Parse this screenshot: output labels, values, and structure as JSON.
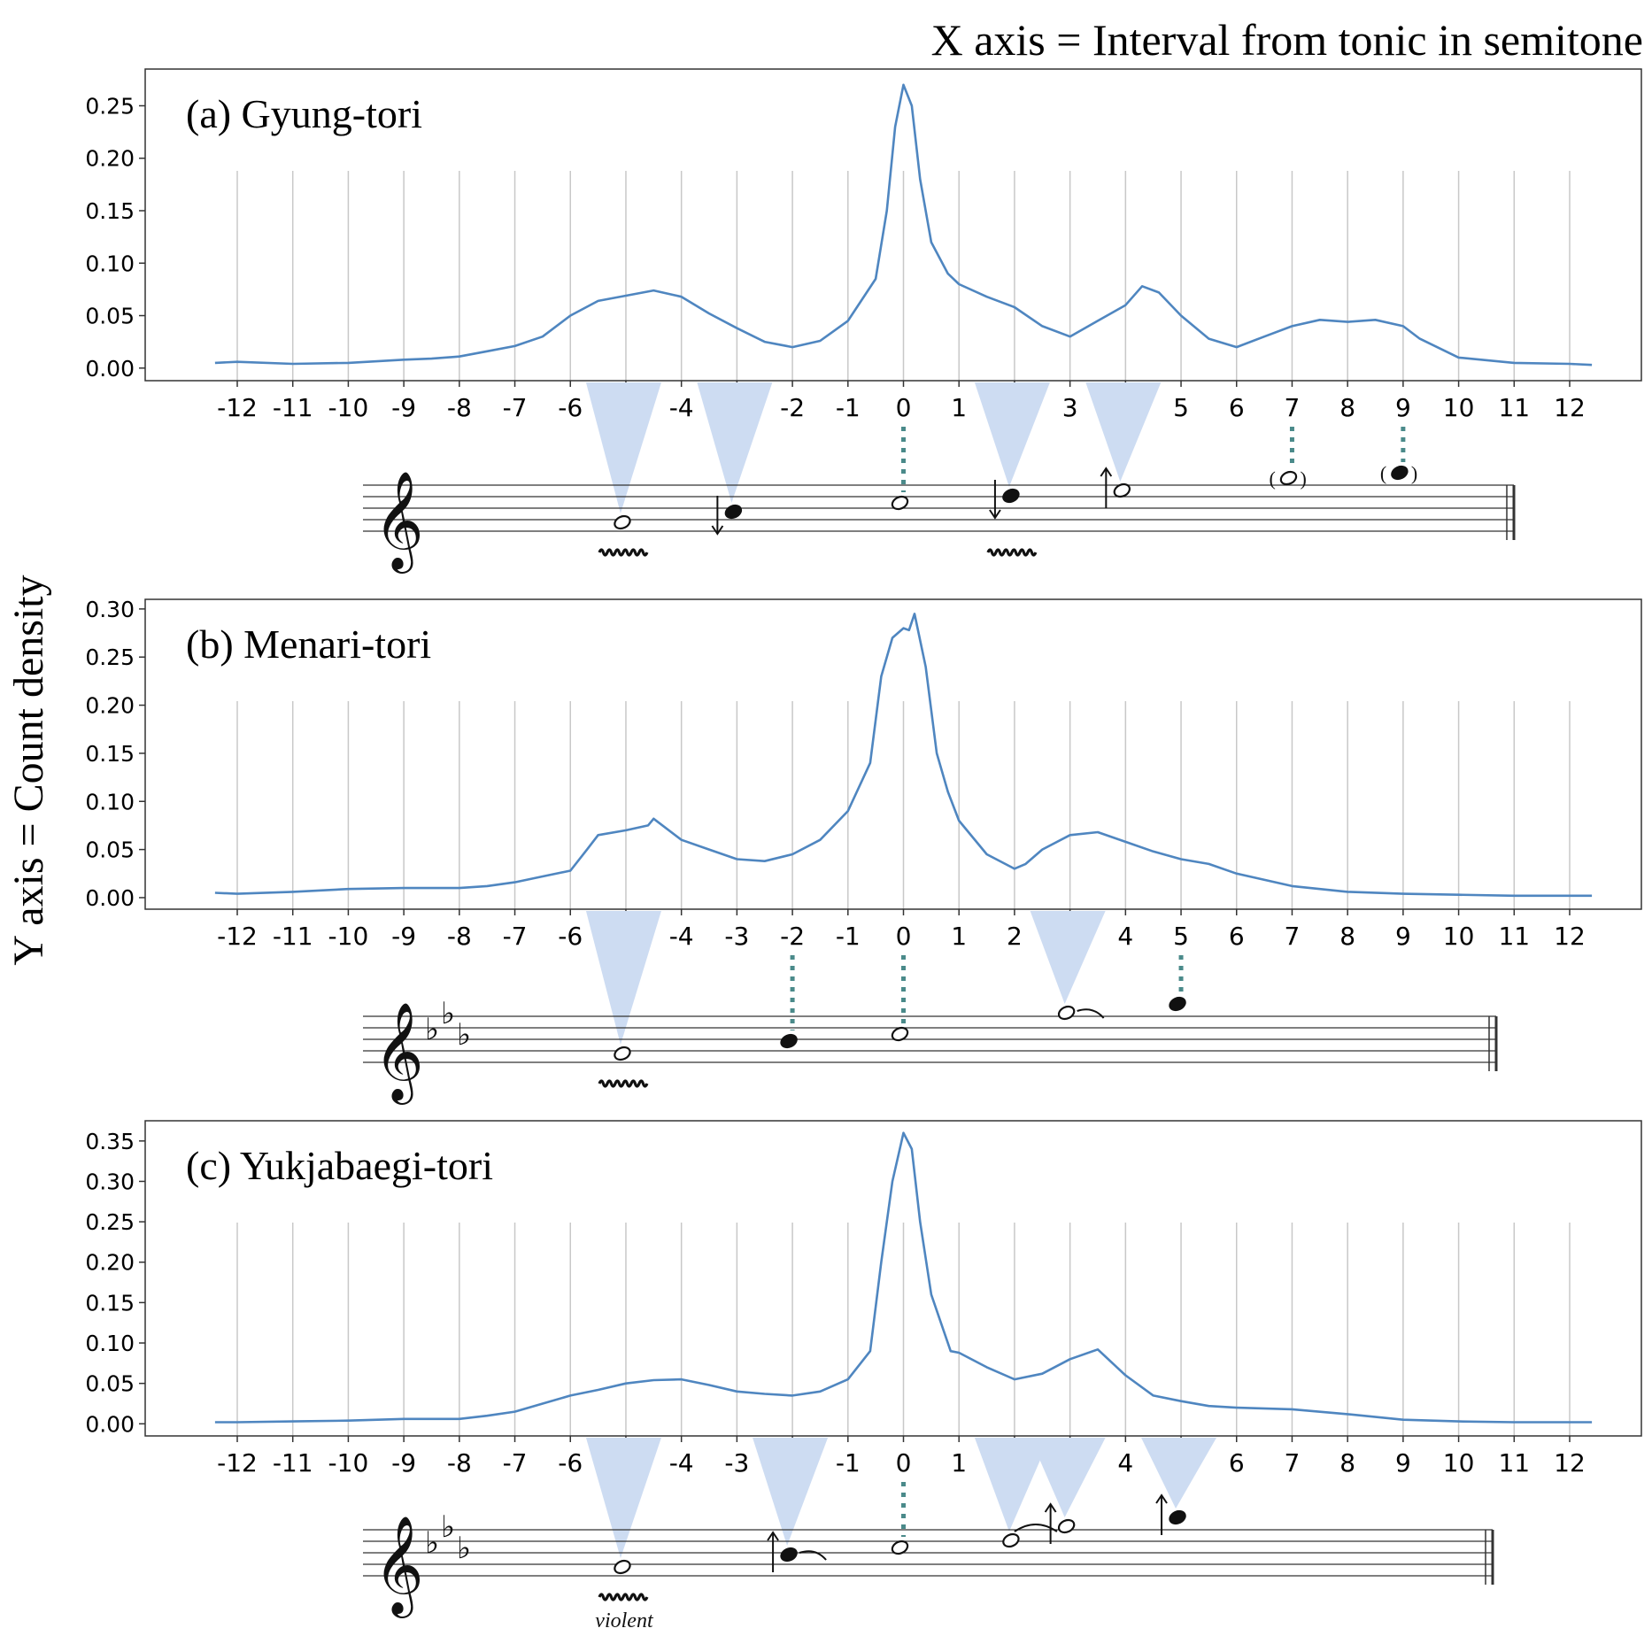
{
  "figure": {
    "x_axis_caption": "X axis = Interval from tonic in semitone",
    "y_axis_caption": "Y axis = Count density"
  },
  "colors": {
    "line": "#4f86c0",
    "grid": "#c8c8c8",
    "highlight": "#cddcf2",
    "dotted": "#4a8a8a",
    "note": "#111111"
  },
  "chart_data": [
    {
      "type": "line",
      "title": "(a) Gyung-tori",
      "xlim": [
        -12.5,
        12.5
      ],
      "ylim": [
        -0.012,
        0.285
      ],
      "xticks": [
        -12,
        -11,
        -10,
        -9,
        -8,
        -7,
        -6,
        -5,
        -4,
        -3,
        -2,
        -1,
        0,
        1,
        2,
        3,
        4,
        5,
        6,
        7,
        8,
        9,
        10,
        11,
        12
      ],
      "yticks": [
        "0.00",
        "0.05",
        "0.10",
        "0.15",
        "0.20",
        "0.25"
      ],
      "grid": "vertical",
      "series": [
        {
          "x": [
            -12.4,
            -12,
            -11,
            -10,
            -9,
            -8.5,
            -8,
            -7.5,
            -7,
            -6.5,
            -6,
            -5.5,
            -5,
            -4.5,
            -4,
            -3.5,
            -3,
            -2.5,
            -2,
            -1.5,
            -1,
            -0.5,
            -0.3,
            -0.15,
            0,
            0.15,
            0.3,
            0.5,
            0.8,
            1,
            1.5,
            2,
            2.5,
            3,
            3.5,
            4,
            4.3,
            4.6,
            5,
            5.5,
            6,
            6.5,
            7,
            7.5,
            8,
            8.5,
            9,
            9.3,
            10,
            11,
            12,
            12.4
          ],
          "y": [
            0.005,
            0.006,
            0.004,
            0.005,
            0.008,
            0.009,
            0.011,
            0.016,
            0.021,
            0.03,
            0.05,
            0.064,
            0.069,
            0.074,
            0.068,
            0.052,
            0.038,
            0.025,
            0.02,
            0.026,
            0.045,
            0.085,
            0.15,
            0.23,
            0.27,
            0.25,
            0.18,
            0.12,
            0.09,
            0.08,
            0.068,
            0.058,
            0.04,
            0.03,
            0.045,
            0.06,
            0.078,
            0.072,
            0.05,
            0.028,
            0.02,
            0.03,
            0.04,
            0.046,
            0.044,
            0.046,
            0.04,
            0.028,
            0.01,
            0.005,
            0.004,
            0.003
          ]
        }
      ],
      "staff": {
        "key_flats": 0,
        "notes": [
          {
            "interval": -5,
            "filled": false,
            "ornament": "vibrato"
          },
          {
            "interval": -3,
            "filled": true,
            "arrow": "down"
          },
          {
            "interval": 0,
            "filled": false
          },
          {
            "interval": 2,
            "filled": true,
            "arrow": "down",
            "ornament": "vibrato"
          },
          {
            "interval": 4,
            "filled": false,
            "arrow": "up"
          },
          {
            "interval": 7,
            "filled": false,
            "parenthesized": true
          },
          {
            "interval": 9,
            "filled": true,
            "parenthesized": true
          }
        ],
        "highlighted_intervals": [
          -5,
          -3,
          2,
          4
        ],
        "dotted_intervals": [
          0,
          7,
          9
        ]
      }
    },
    {
      "type": "line",
      "title": "(b) Menari-tori",
      "xlim": [
        -12.5,
        12.5
      ],
      "ylim": [
        -0.012,
        0.31
      ],
      "xticks": [
        -12,
        -11,
        -10,
        -9,
        -8,
        -7,
        -6,
        -5,
        -4,
        -3,
        -2,
        -1,
        0,
        1,
        2,
        3,
        4,
        5,
        6,
        7,
        8,
        9,
        10,
        11,
        12
      ],
      "yticks": [
        "0.00",
        "0.05",
        "0.10",
        "0.15",
        "0.20",
        "0.25",
        "0.30"
      ],
      "grid": "vertical",
      "series": [
        {
          "x": [
            -12.4,
            -12,
            -11,
            -10,
            -9,
            -8,
            -7.5,
            -7,
            -6.5,
            -6,
            -5.7,
            -5.5,
            -5,
            -4.6,
            -4.5,
            -4,
            -3.5,
            -3,
            -2.5,
            -2,
            -1.5,
            -1,
            -0.6,
            -0.4,
            -0.2,
            0,
            0.1,
            0.2,
            0.4,
            0.6,
            0.8,
            1,
            1.5,
            2,
            2.2,
            2.5,
            3,
            3.5,
            4,
            4.5,
            5,
            5.5,
            6,
            7,
            8,
            9,
            10,
            11,
            12,
            12.4
          ],
          "y": [
            0.005,
            0.004,
            0.006,
            0.009,
            0.01,
            0.01,
            0.012,
            0.016,
            0.022,
            0.028,
            0.05,
            0.065,
            0.07,
            0.075,
            0.082,
            0.06,
            0.05,
            0.04,
            0.038,
            0.045,
            0.06,
            0.09,
            0.14,
            0.23,
            0.27,
            0.28,
            0.278,
            0.295,
            0.24,
            0.15,
            0.11,
            0.08,
            0.045,
            0.03,
            0.035,
            0.05,
            0.065,
            0.068,
            0.058,
            0.048,
            0.04,
            0.035,
            0.025,
            0.012,
            0.006,
            0.004,
            0.003,
            0.002,
            0.002,
            0.002
          ]
        }
      ],
      "staff": {
        "key_flats": 3,
        "notes": [
          {
            "interval": -5,
            "filled": false,
            "ornament": "vibrato"
          },
          {
            "interval": -2,
            "filled": true
          },
          {
            "interval": 0,
            "filled": false
          },
          {
            "interval": 3,
            "filled": false,
            "tie": true
          },
          {
            "interval": 5,
            "filled": true
          }
        ],
        "highlighted_intervals": [
          -5,
          3
        ],
        "dotted_intervals": [
          -2,
          0,
          5
        ]
      }
    },
    {
      "type": "line",
      "title": "(c) Yukjabaegi-tori",
      "xlim": [
        -12.5,
        12.5
      ],
      "ylim": [
        -0.015,
        0.375
      ],
      "xticks": [
        -12,
        -11,
        -10,
        -9,
        -8,
        -7,
        -6,
        -5,
        -4,
        -3,
        -2,
        -1,
        0,
        1,
        2,
        3,
        4,
        5,
        6,
        7,
        8,
        9,
        10,
        11,
        12
      ],
      "yticks": [
        "0.00",
        "0.05",
        "0.10",
        "0.15",
        "0.20",
        "0.25",
        "0.30",
        "0.35"
      ],
      "grid": "vertical",
      "series": [
        {
          "x": [
            -12.4,
            -12,
            -11,
            -10,
            -9,
            -8,
            -7.5,
            -7,
            -6.5,
            -6,
            -5.5,
            -5,
            -4.5,
            -4,
            -3.5,
            -3,
            -2.5,
            -2,
            -1.5,
            -1,
            -0.6,
            -0.4,
            -0.2,
            0,
            0.15,
            0.3,
            0.5,
            0.7,
            0.85,
            1,
            1.5,
            2,
            2.5,
            3,
            3.5,
            4,
            4.5,
            5,
            5.5,
            6,
            7,
            8,
            9,
            10,
            11,
            12,
            12.4
          ],
          "y": [
            0.002,
            0.002,
            0.003,
            0.004,
            0.006,
            0.006,
            0.01,
            0.015,
            0.025,
            0.035,
            0.042,
            0.05,
            0.054,
            0.055,
            0.048,
            0.04,
            0.037,
            0.035,
            0.04,
            0.055,
            0.09,
            0.2,
            0.3,
            0.36,
            0.34,
            0.25,
            0.16,
            0.12,
            0.09,
            0.088,
            0.07,
            0.055,
            0.062,
            0.08,
            0.092,
            0.06,
            0.035,
            0.028,
            0.022,
            0.02,
            0.018,
            0.012,
            0.005,
            0.003,
            0.002,
            0.002,
            0.002
          ]
        }
      ],
      "staff": {
        "key_flats": 3,
        "notes": [
          {
            "interval": -5,
            "filled": false,
            "ornament": "vibrato",
            "ornament_label": "violent"
          },
          {
            "interval": -2,
            "filled": true,
            "arrow": "up",
            "tie": true
          },
          {
            "interval": 0,
            "filled": false
          },
          {
            "interval": 2,
            "filled": false,
            "tie_to_next": true
          },
          {
            "interval": 3,
            "filled": false,
            "arrow": "up"
          },
          {
            "interval": 5,
            "filled": true,
            "arrow": "up"
          }
        ],
        "highlighted_intervals": [
          -5,
          -2,
          2,
          3,
          5
        ],
        "dotted_intervals": [
          0
        ]
      }
    }
  ]
}
